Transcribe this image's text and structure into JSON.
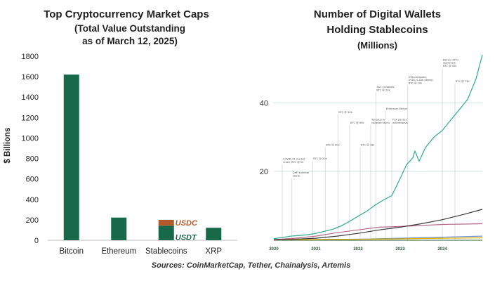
{
  "sources": "Sources: CoinMarketCap, Tether, Chainalysis, Artemis",
  "chart_data": [
    {
      "type": "bar",
      "title": "Top Cryptocurrency Market Caps",
      "subtitle_line1": "(Total Value Outstanding",
      "subtitle_line2": "as of March 12, 2025)",
      "ylabel": "$ Billions",
      "xlabel": "",
      "ylim": [
        0,
        1800
      ],
      "yticks": [
        "0",
        "200",
        "400",
        "600",
        "800",
        "1000",
        "1200",
        "1400",
        "1600",
        "1800"
      ],
      "categories": [
        "Bitcoin",
        "Ethereum",
        "Stablecoins",
        "XRP"
      ],
      "series": [
        {
          "name": "USDT",
          "color": "#17694a",
          "values": [
            1620,
            222,
            142,
            122
          ],
          "label_on": [
            false,
            false,
            true,
            false
          ]
        },
        {
          "name": "USDC",
          "color": "#b35a2a",
          "values": [
            0,
            0,
            58,
            0
          ],
          "label_on": [
            false,
            false,
            true,
            false
          ]
        }
      ],
      "grid": false,
      "legend": "inline labels on Stablecoins bar"
    },
    {
      "type": "line",
      "title_line1": "Number of Digital Wallets",
      "title_line2": "Holding Stablecoins",
      "subtitle": "(Millions)",
      "ylim": [
        0,
        54
      ],
      "yticks": [
        20,
        40
      ],
      "xlim": [
        2020.0,
        2024.95
      ],
      "xticks": [
        "2020",
        "2021",
        "2022",
        "2023",
        "2024"
      ],
      "grid": "horizontal reference lines at 20 and 40",
      "series": [
        {
          "name": "total",
          "color": "#3fae96",
          "x": [
            2020.0,
            2020.2,
            2020.4,
            2020.6,
            2020.8,
            2021.0,
            2021.2,
            2021.4,
            2021.6,
            2021.8,
            2022.0,
            2022.2,
            2022.4,
            2022.6,
            2022.8,
            2022.9,
            2023.0,
            2023.15,
            2023.3,
            2023.35,
            2023.45,
            2023.6,
            2023.8,
            2024.0,
            2024.2,
            2024.4,
            2024.6,
            2024.8,
            2024.95
          ],
          "y": [
            0.5,
            0.8,
            1.2,
            1.4,
            1.6,
            2.0,
            2.6,
            3.2,
            4.2,
            5.5,
            7.0,
            8.4,
            10.2,
            11.7,
            13.0,
            15.5,
            18.0,
            22.0,
            24.0,
            26.0,
            23.0,
            27.0,
            30.0,
            32.0,
            35.0,
            38.0,
            41.0,
            47.0,
            54.0
          ]
        },
        {
          "name": "series-2",
          "color": "#3b3b3b",
          "x": [
            2020.0,
            2020.5,
            2021.0,
            2021.5,
            2022.0,
            2022.5,
            2023.0,
            2023.5,
            2024.0,
            2024.5,
            2024.95
          ],
          "y": [
            0.1,
            0.3,
            0.6,
            1.2,
            2.0,
            3.0,
            3.8,
            4.8,
            6.0,
            7.5,
            9.0
          ]
        },
        {
          "name": "series-3",
          "color": "#b56a8a",
          "x": [
            2020.0,
            2020.5,
            2021.0,
            2021.5,
            2022.0,
            2022.5,
            2023.0,
            2023.5,
            2024.0,
            2024.5,
            2024.95
          ],
          "y": [
            0.2,
            0.6,
            1.2,
            2.2,
            3.0,
            3.8,
            4.0,
            4.3,
            4.6,
            4.7,
            4.8
          ]
        },
        {
          "name": "series-4",
          "color": "#e0b000",
          "x": [
            2020.0,
            2021.0,
            2022.0,
            2023.0,
            2024.0,
            2024.95
          ],
          "y": [
            0.1,
            0.2,
            0.3,
            0.4,
            0.6,
            0.7
          ]
        },
        {
          "name": "series-5",
          "color": "#6a8fd0",
          "x": [
            2020.0,
            2021.0,
            2022.0,
            2023.0,
            2024.0,
            2024.95
          ],
          "y": [
            0.1,
            0.2,
            0.3,
            0.6,
            0.9,
            1.2
          ]
        }
      ],
      "annotations": [
        {
          "x": 2020.2,
          "y": 22.5,
          "lines": [
            "COVID-19 market",
            "crash, BTC @ 5k"
          ]
        },
        {
          "x": 2020.43,
          "y": 18.5,
          "lines": [
            "DeFi summer",
            "starts"
          ]
        },
        {
          "x": 2020.92,
          "y": 23.5,
          "lines": [
            "BTC @ 20k"
          ]
        },
        {
          "x": 2021.22,
          "y": 27.5,
          "lines": [
            "BTC @ 60k"
          ]
        },
        {
          "x": 2021.52,
          "y": 37.0,
          "lines": [
            "BTC @ 30k"
          ]
        },
        {
          "x": 2021.8,
          "y": 34.0,
          "lines": [
            "BTC @ 69k"
          ]
        },
        {
          "x": 2022.05,
          "y": 27.5,
          "lines": [
            "BTC @ 38k"
          ]
        },
        {
          "x": 2022.3,
          "y": 34.0,
          "lines": [
            "Terra/Luna",
            "collapse starts"
          ]
        },
        {
          "x": 2022.42,
          "y": 43.5,
          "lines": [
            "3AC collapses;",
            "BTC @ 20k"
          ]
        },
        {
          "x": 2022.65,
          "y": 38.0,
          "lines": [
            "Ethereum Merge"
          ]
        },
        {
          "x": 2022.8,
          "y": 34.0,
          "lines": [
            "FTX pauses",
            "withdrawals"
          ]
        },
        {
          "x": 2023.18,
          "y": 45.5,
          "lines": [
            "SVB collapses;",
            "USDC & DAI depeg;",
            "BTC @ 20k"
          ]
        },
        {
          "x": 2024.0,
          "y": 50.5,
          "lines": [
            "Bitcoin ETFs",
            "approved;",
            "BTC @ 47k"
          ]
        },
        {
          "x": 2024.3,
          "y": 46.0,
          "lines": [
            "BTC @ 73k"
          ]
        }
      ]
    }
  ]
}
